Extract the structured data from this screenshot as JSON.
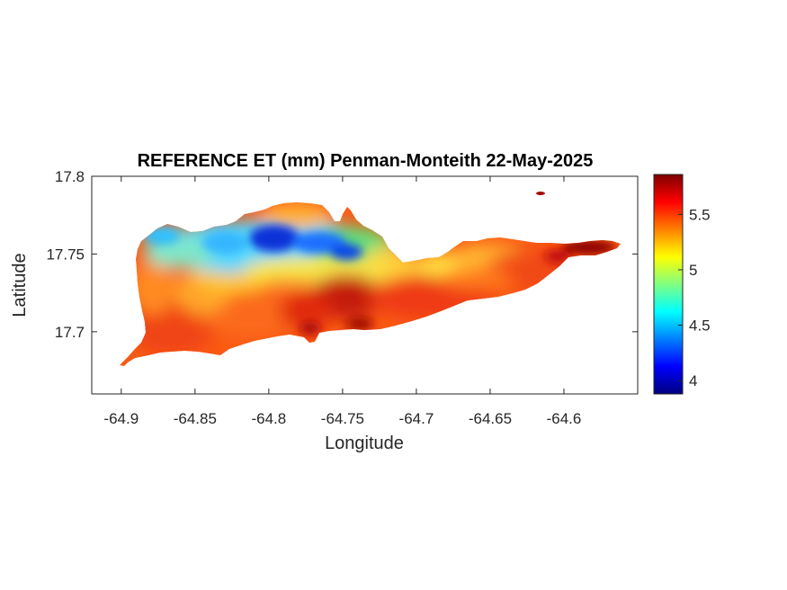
{
  "chart_data": {
    "type": "heatmap",
    "title": "REFERENCE ET (mm) Penman-Monteith 22-May-2025",
    "xlabel": "Longitude",
    "ylabel": "Latitude",
    "xlim": [
      -64.92,
      -64.55
    ],
    "ylim": [
      17.66,
      17.8
    ],
    "x_ticks": [
      -64.9,
      -64.85,
      -64.8,
      -64.75,
      -64.7,
      -64.65,
      -64.6
    ],
    "y_ticks": [
      17.7,
      17.75,
      17.8
    ],
    "colorbar": {
      "colormap": "jet",
      "range": [
        3.88,
        5.86
      ],
      "ticks": [
        4,
        4.5,
        5,
        5.5
      ]
    },
    "grid": false
  }
}
